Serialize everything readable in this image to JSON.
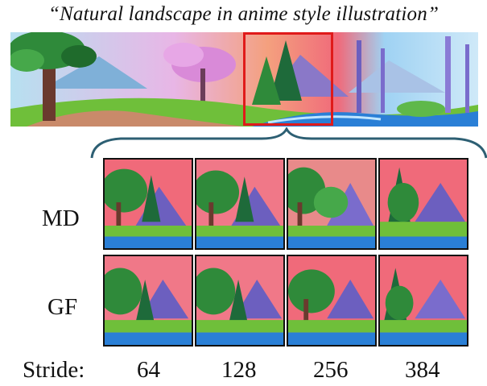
{
  "caption": "“Natural landscape in anime style illustration”",
  "row_labels": [
    "MD",
    "GF"
  ],
  "stride_label": "Stride:",
  "strides": [
    "64",
    "128",
    "256",
    "384"
  ],
  "colors": {
    "highlight_box": "#e01a1a",
    "brace": "#2d5f73",
    "sky_pink": "#f06a7a",
    "tree_green": "#2f8a3a",
    "water_blue": "#2a7fd6"
  }
}
